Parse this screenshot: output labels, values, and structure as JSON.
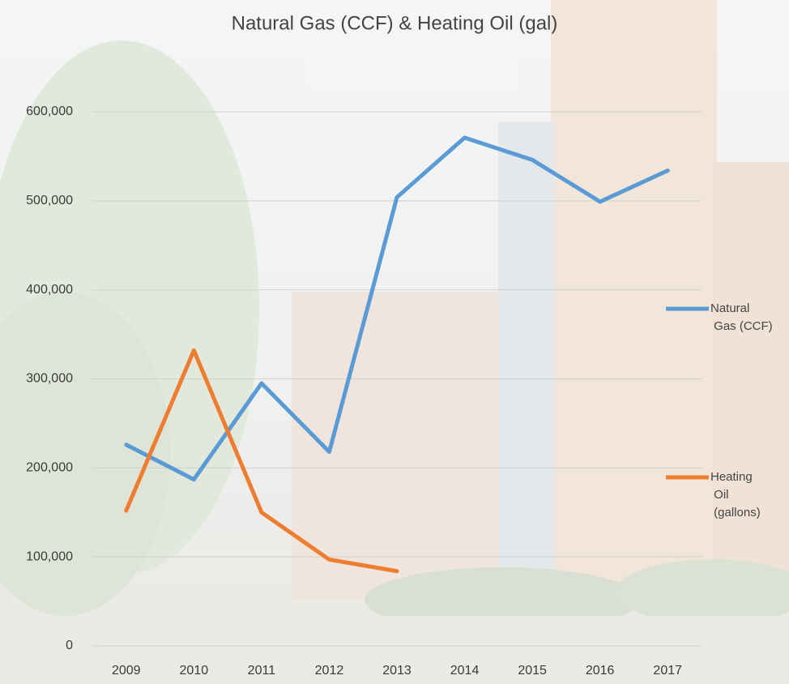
{
  "chart_data": {
    "type": "line",
    "title": "Natural Gas (CCF) & Heating Oil (gal)",
    "categories": [
      "2009",
      "2010",
      "2011",
      "2012",
      "2013",
      "2014",
      "2015",
      "2016",
      "2017"
    ],
    "series": [
      {
        "name": "Natural Gas (CCF)",
        "color": "#5b9bd5",
        "values": [
          226000,
          187000,
          295000,
          218000,
          504000,
          571000,
          546000,
          499000,
          534000
        ]
      },
      {
        "name": "Heating Oil (gallons)",
        "color": "#ed7d31",
        "values": [
          152000,
          332000,
          150000,
          97000,
          84000,
          null,
          null,
          null,
          null
        ]
      }
    ],
    "ylim": [
      0,
      600000
    ],
    "yticks": [
      0,
      {
        "value": 100000,
        "label": "100,000"
      },
      {
        "value": 200000,
        "label": "200,000"
      },
      {
        "value": 300000,
        "label": "300,000"
      },
      {
        "value": 400000,
        "label": "400,000"
      },
      {
        "value": 500000,
        "label": "500,000"
      },
      {
        "value": 600000,
        "label": "600,000"
      }
    ],
    "grid": true,
    "legend": "right"
  }
}
